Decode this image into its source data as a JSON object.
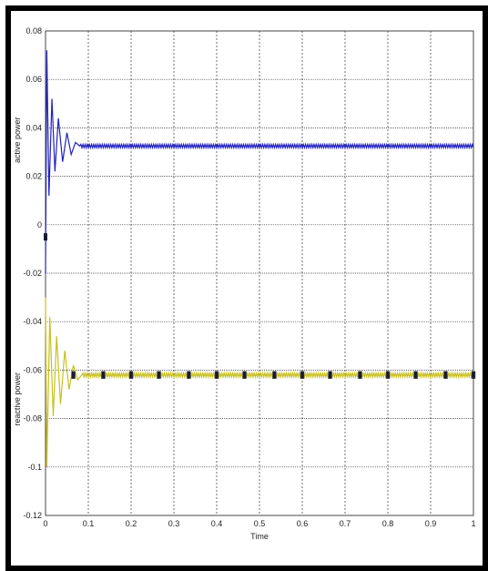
{
  "chart_data": {
    "type": "line",
    "xlabel": "Time",
    "ylabels": [
      "active power",
      "reactive power"
    ],
    "xlim": [
      0,
      1
    ],
    "ylim": [
      -0.12,
      0.08
    ],
    "xticks": [
      0,
      0.1,
      0.2,
      0.3,
      0.4,
      0.5,
      0.6,
      0.7,
      0.8,
      0.9,
      1
    ],
    "yticks": [
      -0.12,
      -0.1,
      -0.08,
      -0.06,
      -0.04,
      -0.02,
      0,
      0.02,
      0.04,
      0.06,
      0.08
    ],
    "xtick_labels": [
      "0",
      "0.1",
      "0.2",
      "0.3",
      "0.4",
      "0.5",
      "0.6",
      "0.7",
      "0.8",
      "0.9",
      "1"
    ],
    "ytick_labels": [
      "-0.12",
      "-0.1",
      "-0.08",
      "-0.06",
      "-0.04",
      "-0.02",
      "0",
      "0.02",
      "0.04",
      "0.06",
      "0.08"
    ],
    "grid": true,
    "grid_style": "dotted",
    "series": [
      {
        "color": "#2020c0",
        "steady_value": 0.0325,
        "ripple_amplitude": 0.0007,
        "transient_points": [
          [
            0,
            -0.02
          ],
          [
            0.003,
            0.072
          ],
          [
            0.008,
            0.012
          ],
          [
            0.015,
            0.052
          ],
          [
            0.022,
            0.022
          ],
          [
            0.03,
            0.044
          ],
          [
            0.04,
            0.026
          ],
          [
            0.05,
            0.038
          ],
          [
            0.06,
            0.029
          ],
          [
            0.07,
            0.034
          ],
          [
            0.08,
            0.0325
          ]
        ]
      },
      {
        "color": "#c8c020",
        "steady_value": -0.062,
        "ripple_amplitude": 0.0008,
        "transient_points": [
          [
            0,
            -0.03
          ],
          [
            0.003,
            -0.1
          ],
          [
            0.01,
            -0.038
          ],
          [
            0.018,
            -0.079
          ],
          [
            0.026,
            -0.046
          ],
          [
            0.035,
            -0.074
          ],
          [
            0.045,
            -0.052
          ],
          [
            0.055,
            -0.068
          ],
          [
            0.065,
            -0.058
          ],
          [
            0.075,
            -0.064
          ],
          [
            0.085,
            -0.062
          ]
        ],
        "marker_x": [
          0.065,
          0.135,
          0.2,
          0.265,
          0.335,
          0.4,
          0.465,
          0.535,
          0.6,
          0.665,
          0.735,
          0.8,
          0.865,
          0.935,
          1.0
        ]
      }
    ]
  }
}
